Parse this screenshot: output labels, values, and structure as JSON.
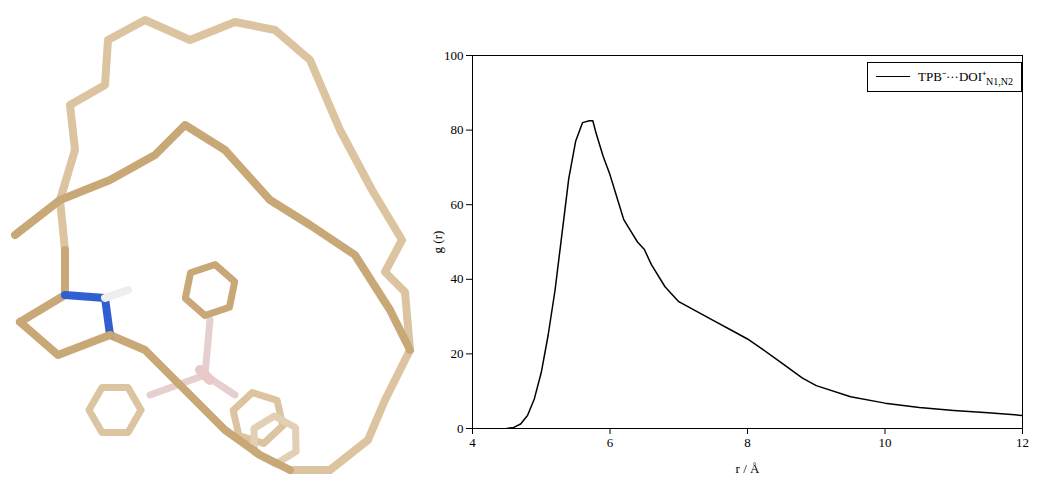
{
  "chart_data": {
    "type": "line",
    "xlabel": "r / Å",
    "ylabel": "g (r)",
    "xlim": [
      4,
      12
    ],
    "ylim": [
      0,
      100
    ],
    "xticks": [
      4,
      6,
      8,
      10,
      12
    ],
    "yticks": [
      0,
      20,
      40,
      60,
      80,
      100
    ],
    "legend": "top-right",
    "grid": false,
    "x": [
      4.5,
      4.6,
      4.7,
      4.8,
      4.9,
      5.0,
      5.1,
      5.2,
      5.3,
      5.4,
      5.5,
      5.6,
      5.7,
      5.75,
      5.8,
      5.9,
      6.0,
      6.1,
      6.2,
      6.3,
      6.4,
      6.5,
      6.6,
      6.8,
      7.0,
      7.2,
      7.5,
      7.8,
      8.0,
      8.2,
      8.5,
      8.8,
      9.0,
      9.5,
      10.0,
      10.5,
      11.0,
      11.5,
      12.0
    ],
    "series": [
      {
        "name": "TPB⁻···DOI⁺N1,N2",
        "color": "#000000",
        "values": [
          0,
          0.3,
          1.2,
          3.5,
          8,
          15,
          25,
          37,
          52,
          67,
          77,
          82,
          82.5,
          82.5,
          79,
          73,
          68,
          62,
          56,
          53,
          50,
          48,
          44,
          38,
          34,
          32,
          29,
          26,
          24,
          21.5,
          17.5,
          13.5,
          11.5,
          8.5,
          6.8,
          5.6,
          4.8,
          4.2,
          3.5
        ]
      }
    ]
  }
}
